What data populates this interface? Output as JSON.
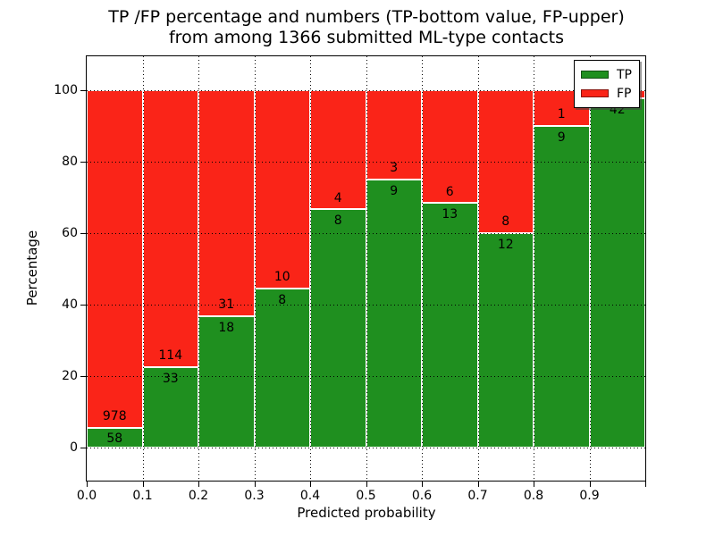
{
  "figure": {
    "title_line1": "TP /FP percentage and numbers (TP-bottom value, FP-upper)",
    "title_line2": "from among 1366 submitted ML-type contacts"
  },
  "chart_data": {
    "type": "bar",
    "stacked": true,
    "title": "TP /FP percentage and numbers (TP-bottom value, FP-upper)\nfrom among 1366 submitted ML-type contacts",
    "xlabel": "Predicted probability",
    "ylabel": "Percentage",
    "total_contacts": 1366,
    "bin_width": 0.1,
    "bin_starts": [
      0.0,
      0.1,
      0.2,
      0.3,
      0.4,
      0.5,
      0.6,
      0.7,
      0.8,
      0.9
    ],
    "series": [
      {
        "name": "TP",
        "color": "#1f8f1f",
        "values": [
          58,
          33,
          18,
          8,
          8,
          9,
          13,
          12,
          9,
          42
        ]
      },
      {
        "name": "FP",
        "color": "#fa2418",
        "values": [
          978,
          114,
          31,
          10,
          4,
          3,
          6,
          8,
          1,
          1
        ]
      }
    ],
    "tp_percent_of_bin": [
      5.6,
      22.4,
      36.7,
      44.4,
      66.7,
      75.0,
      68.4,
      60.0,
      90.0,
      97.7
    ],
    "fp_label_visible": [
      true,
      true,
      true,
      true,
      true,
      true,
      true,
      true,
      true,
      false
    ],
    "bars_sum_to_percent": 100,
    "xticks": [
      "0.0",
      "0.1",
      "0.2",
      "0.3",
      "0.4",
      "0.5",
      "0.6",
      "0.7",
      "0.8",
      "0.9"
    ],
    "yticks": [
      0,
      20,
      40,
      60,
      80,
      100
    ],
    "xlim": [
      0.0,
      1.0
    ],
    "ylim": [
      -10,
      110
    ],
    "grid": {
      "on": true,
      "style": "dotted",
      "color": "#000000"
    },
    "legend": {
      "position": "upper right",
      "entries": [
        "TP",
        "FP"
      ]
    },
    "colors": {
      "tp": "#1f8f1f",
      "fp": "#fa2418",
      "bar_edge": "#ffffff",
      "spine": "#000000"
    }
  }
}
